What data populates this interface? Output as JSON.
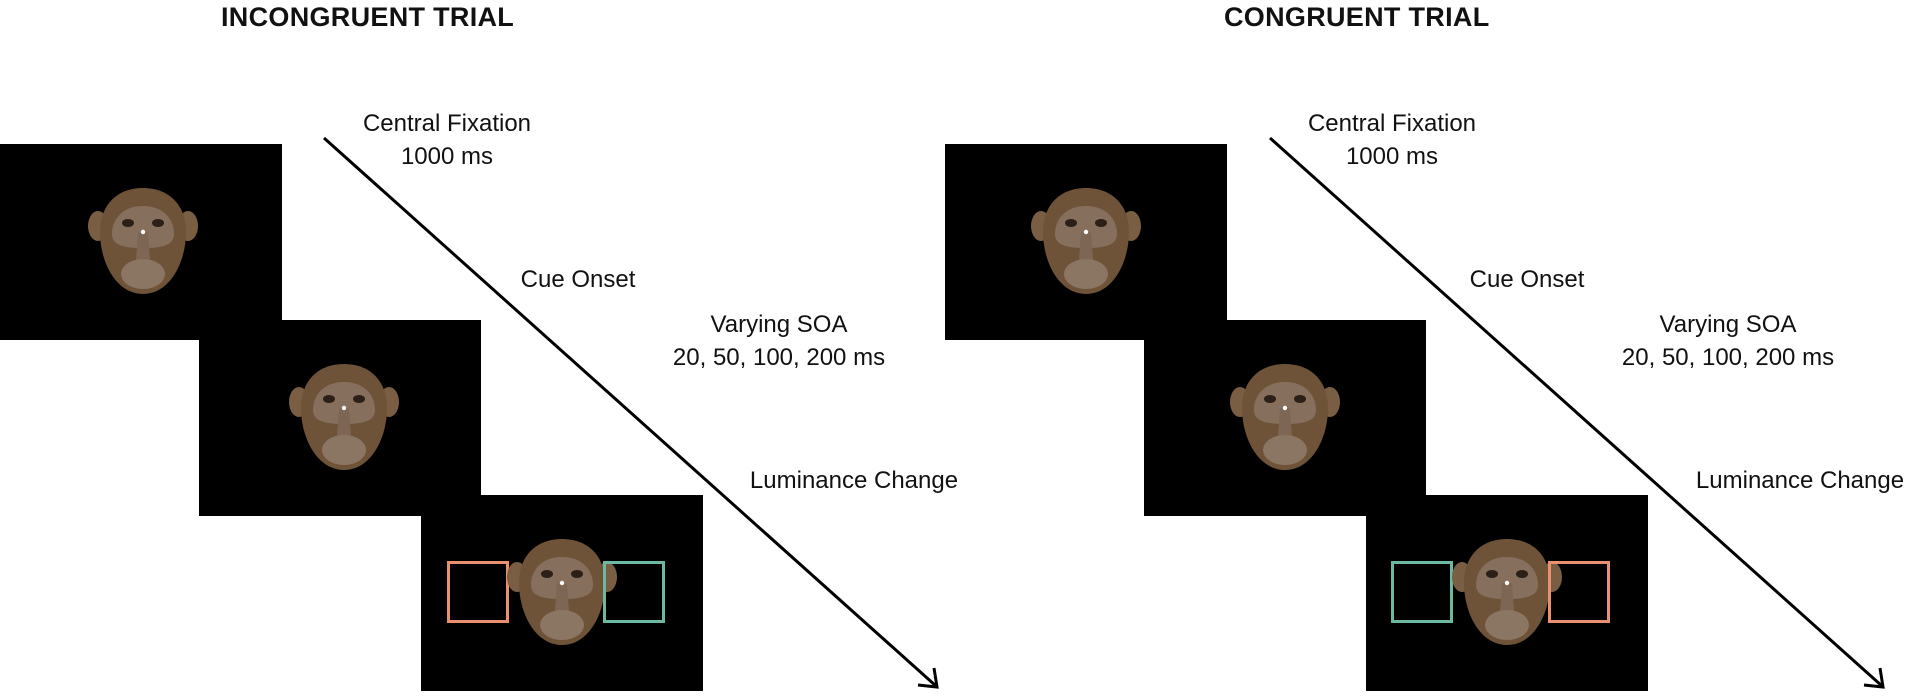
{
  "colors": {
    "background": "#ffffff",
    "screen": "#000000",
    "cue_orange": "#e9906f",
    "cue_teal": "#6db8a3",
    "fixation": "#ffffff",
    "arrow": "#000000"
  },
  "panels": [
    {
      "title": "INCONGRUENT TRIAL",
      "labels": {
        "fixation": [
          "Central Fixation",
          "1000 ms"
        ],
        "cue": [
          "Cue Onset"
        ],
        "soa": [
          "Varying SOA",
          "20, 50, 100, 200 ms"
        ],
        "luminance": [
          "Luminance Change"
        ]
      },
      "cue_boxes": {
        "left": "cue_orange",
        "right": "cue_teal"
      }
    },
    {
      "title": "CONGRUENT TRIAL",
      "labels": {
        "fixation": [
          "Central Fixation",
          "1000 ms"
        ],
        "cue": [
          "Cue Onset"
        ],
        "soa": [
          "Varying SOA",
          "20, 50, 100, 200 ms"
        ],
        "luminance": [
          "Luminance Change"
        ]
      },
      "cue_boxes": {
        "left": "cue_teal",
        "right": "cue_orange"
      }
    }
  ],
  "icons": [
    "monkey-face-icon",
    "fixation-dot-icon",
    "timeline-arrow-icon"
  ]
}
